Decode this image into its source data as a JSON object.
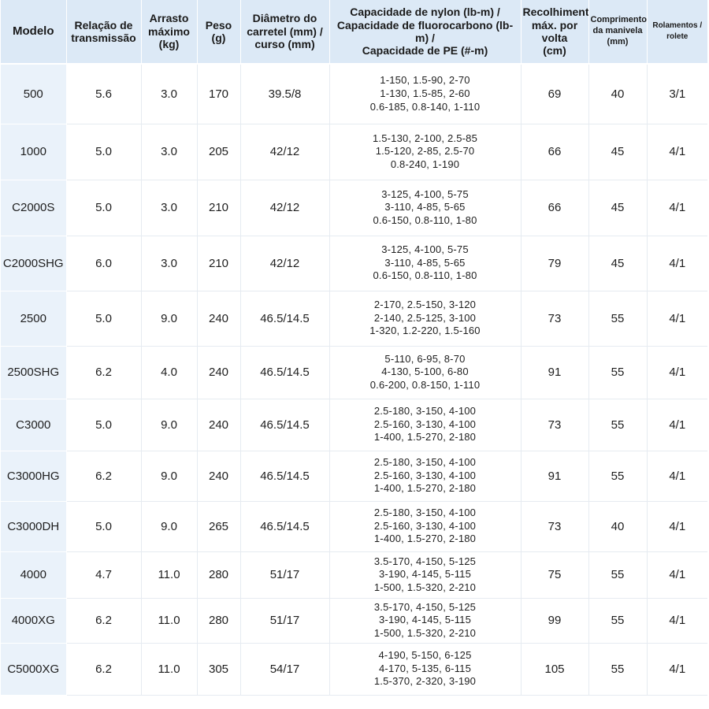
{
  "table": {
    "headers": {
      "model": "Modelo",
      "gear_ratio": [
        "Relação de",
        "transmissão"
      ],
      "max_drag": [
        "Arrasto",
        "máximo",
        "(kg)"
      ],
      "weight": [
        "Peso",
        "(g)"
      ],
      "spool": [
        "Diâmetro do",
        "carretel (mm) /",
        "curso (mm)"
      ],
      "capacity": [
        "Capacidade de nylon (lb-m) /",
        "Capacidade de fluorocarbono (lb-m) /",
        "Capacidade de PE (#-m)"
      ],
      "retrieve": [
        "Recolhimento",
        "máx. por volta",
        "(cm)"
      ],
      "handle": [
        "Comprimento",
        "da manivela",
        "(mm)"
      ],
      "bearings": [
        "Rolamentos /",
        "rolete"
      ]
    },
    "rows": [
      {
        "model": "500",
        "gear_ratio": "5.6",
        "max_drag": "3.0",
        "weight": "170",
        "spool": "39.5/8",
        "capacity": [
          "1-150,  1.5-90,  2-70",
          "1-130,  1.5-85,  2-60",
          "0.6-185,  0.8-140,  1-110"
        ],
        "retrieve": "69",
        "handle": "40",
        "bearings": "3/1"
      },
      {
        "model": "1000",
        "gear_ratio": "5.0",
        "max_drag": "3.0",
        "weight": "205",
        "spool": "42/12",
        "capacity": [
          "1.5-130,  2-100,  2.5-85",
          "1.5-120,  2-85,  2.5-70",
          "0.8-240,  1-190"
        ],
        "retrieve": "66",
        "handle": "45",
        "bearings": "4/1"
      },
      {
        "model": "C2000S",
        "gear_ratio": "5.0",
        "max_drag": "3.0",
        "weight": "210",
        "spool": "42/12",
        "capacity": [
          "3-125,  4-100,  5-75",
          "3-110,  4-85,  5-65",
          "0.6-150,  0.8-110,  1-80"
        ],
        "retrieve": "66",
        "handle": "45",
        "bearings": "4/1"
      },
      {
        "model": "C2000SHG",
        "gear_ratio": "6.0",
        "max_drag": "3.0",
        "weight": "210",
        "spool": "42/12",
        "capacity": [
          "3-125,  4-100,  5-75",
          "3-110,  4-85,  5-65",
          "0.6-150,  0.8-110,  1-80"
        ],
        "retrieve": "79",
        "handle": "45",
        "bearings": "4/1"
      },
      {
        "model": "2500",
        "gear_ratio": "5.0",
        "max_drag": "9.0",
        "weight": "240",
        "spool": "46.5/14.5",
        "capacity": [
          "2-170,  2.5-150,  3-120",
          "2-140,  2.5-125,  3-100",
          "1-320,  1.2-220,  1.5-160"
        ],
        "retrieve": "73",
        "handle": "55",
        "bearings": "4/1"
      },
      {
        "model": "2500SHG",
        "gear_ratio": "6.2",
        "max_drag": "4.0",
        "weight": "240",
        "spool": "46.5/14.5",
        "capacity": [
          "5-110,  6-95,  8-70",
          "4-130,  5-100,  6-80",
          "0.6-200,  0.8-150,  1-110"
        ],
        "retrieve": "91",
        "handle": "55",
        "bearings": "4/1"
      },
      {
        "model": "C3000",
        "gear_ratio": "5.0",
        "max_drag": "9.0",
        "weight": "240",
        "spool": "46.5/14.5",
        "capacity": [
          "2.5-180,  3-150,  4-100",
          "2.5-160,  3-130,  4-100",
          "1-400,  1.5-270,  2-180"
        ],
        "retrieve": "73",
        "handle": "55",
        "bearings": "4/1"
      },
      {
        "model": "C3000HG",
        "gear_ratio": "6.2",
        "max_drag": "9.0",
        "weight": "240",
        "spool": "46.5/14.5",
        "capacity": [
          "2.5-180,  3-150,  4-100",
          "2.5-160,  3-130,  4-100",
          "1-400,  1.5-270,  2-180"
        ],
        "retrieve": "91",
        "handle": "55",
        "bearings": "4/1"
      },
      {
        "model": "C3000DH",
        "gear_ratio": "5.0",
        "max_drag": "9.0",
        "weight": "265",
        "spool": "46.5/14.5",
        "capacity": [
          "2.5-180,  3-150,  4-100",
          "2.5-160,  3-130,  4-100",
          "1-400,  1.5-270,  2-180"
        ],
        "retrieve": "73",
        "handle": "40",
        "bearings": "4/1"
      },
      {
        "model": "4000",
        "gear_ratio": "4.7",
        "max_drag": "11.0",
        "weight": "280",
        "spool": "51/17",
        "capacity": [
          "3.5-170,  4-150,  5-125",
          "3-190,  4-145,  5-115",
          "1-500,  1.5-320,  2-210"
        ],
        "retrieve": "75",
        "handle": "55",
        "bearings": "4/1"
      },
      {
        "model": "4000XG",
        "gear_ratio": "6.2",
        "max_drag": "11.0",
        "weight": "280",
        "spool": "51/17",
        "capacity": [
          "3.5-170,  4-150,  5-125",
          "3-190,  4-145,  5-115",
          "1-500,  1.5-320,  2-210"
        ],
        "retrieve": "99",
        "handle": "55",
        "bearings": "4/1"
      },
      {
        "model": "C5000XG",
        "gear_ratio": "6.2",
        "max_drag": "11.0",
        "weight": "305",
        "spool": "54/17",
        "capacity": [
          "4-190,  5-150,  6-125",
          "4-170,  5-135,  6-115",
          "1.5-370,  2-320,  3-190"
        ],
        "retrieve": "105",
        "handle": "55",
        "bearings": "4/1"
      }
    ]
  }
}
